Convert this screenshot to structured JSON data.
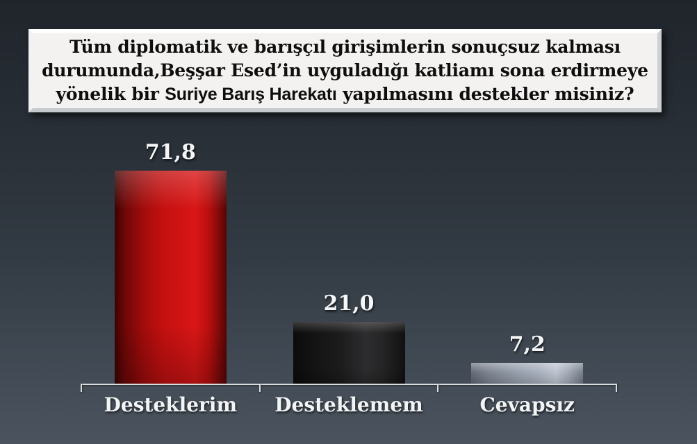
{
  "slide": {
    "background_top": "#20252c",
    "background_bottom": "#4b545e"
  },
  "title": {
    "line1": "Tüm diplomatik ve barışçıl girişimlerin sonuçsuz kalması",
    "line2": "durumunda,Beşşar Esed’in uyguladığı katliamı sona erdirmeye",
    "line3_prefix": "yönelik bir ",
    "line3_bold": "Suriye Barış Harekatı",
    "line3_suffix": " yapılmasını destekler misiniz?"
  },
  "chart_data": {
    "type": "bar",
    "categories": [
      "Desteklerim",
      "Desteklemem",
      "Cevapsız"
    ],
    "values": [
      71.8,
      21.0,
      7.2
    ],
    "value_labels": [
      "71,8",
      "21,0",
      "7,2"
    ],
    "bar_colors": [
      "#c51010",
      "#1c1c1d",
      "#a2aab8"
    ],
    "title": "",
    "xlabel": "",
    "ylabel": "",
    "ylim": [
      0,
      80
    ],
    "grid": false,
    "legend": false,
    "value_label_color": "#f4f6f8",
    "category_label_color": "#f2f4f6",
    "axis_color": "#dadde0"
  }
}
